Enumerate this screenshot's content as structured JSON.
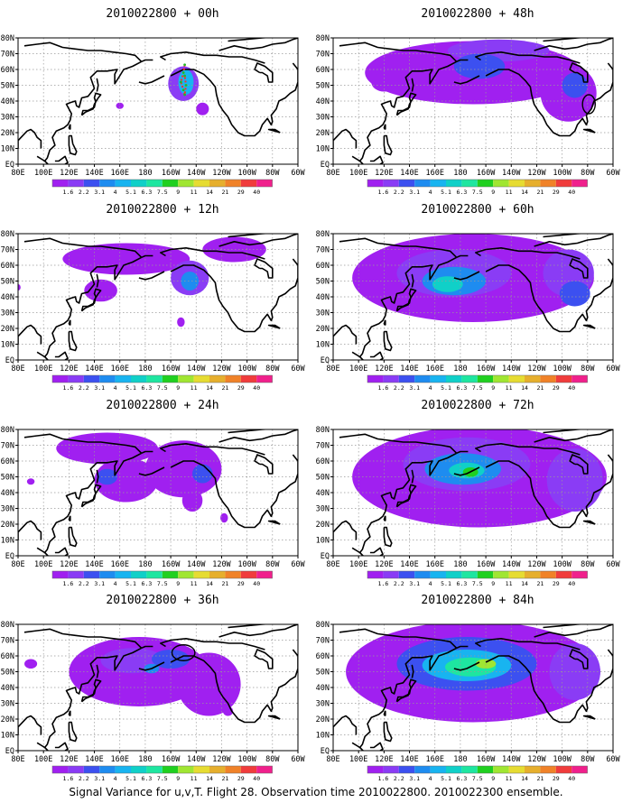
{
  "figure": {
    "caption": "Signal Variance for u,v,T. Flight 28. Observation time 2010022800. 2010022300 ensemble."
  },
  "colors": {
    "land_outline": "#000000",
    "grid": "#999999",
    "track": "#ff2b2b",
    "track_points": "#23b823"
  },
  "chart_data": [
    {
      "type": "heatmap",
      "title": "2010022800 + 00h",
      "lead_hours": 0,
      "x_ticks": [
        "80E",
        "100E",
        "120E",
        "140E",
        "160E",
        "180",
        "160W",
        "140W",
        "120W",
        "100W",
        "80W",
        "60W"
      ],
      "y_ticks": [
        "EQ",
        "10N",
        "20N",
        "30N",
        "40N",
        "50N",
        "60N",
        "70N",
        "80N"
      ],
      "colorbar": {
        "levels": [
          "1.6",
          "2.2",
          "3.1",
          "4",
          "5.1",
          "6.3",
          "7.5",
          "9",
          "11",
          "14",
          "21",
          "29",
          "40"
        ],
        "colors": [
          "#a020f0",
          "#8a3cf5",
          "#3c50f0",
          "#1e8cf0",
          "#18b4f0",
          "#10d0c8",
          "#1ee6a0",
          "#20d020",
          "#a0e632",
          "#e6dc32",
          "#e6af2d",
          "#f08228",
          "#f03c3c",
          "#f0208c"
        ]
      },
      "blobs": [
        {
          "lon": -150,
          "lat": 51,
          "rx": 12,
          "ry": 11,
          "level": 1
        },
        {
          "lon": -148,
          "lat": 52,
          "rx": 6,
          "ry": 8,
          "level": 4
        },
        {
          "lon": -135,
          "lat": 35,
          "rx": 5,
          "ry": 4,
          "level": 0
        },
        {
          "lon": 160,
          "lat": 37,
          "rx": 3,
          "ry": 2,
          "level": 0
        }
      ],
      "annotation": {
        "type": "flight-track",
        "lon": [
          -149,
          -150,
          -152,
          -150,
          -149,
          -148,
          -149
        ],
        "lat": [
          63,
          58,
          52,
          47,
          44,
          50,
          56
        ]
      }
    },
    {
      "type": "heatmap",
      "title": "2010022800 + 12h",
      "lead_hours": 12,
      "x_ticks": [
        "80E",
        "100E",
        "120E",
        "140E",
        "160E",
        "180",
        "160W",
        "140W",
        "120W",
        "100W",
        "80W",
        "60W"
      ],
      "y_ticks": [
        "EQ",
        "10N",
        "20N",
        "30N",
        "40N",
        "50N",
        "60N",
        "70N",
        "80N"
      ],
      "colorbar": {
        "levels": [
          "1.6",
          "2.2",
          "3.1",
          "4",
          "5.1",
          "6.3",
          "7.5",
          "9",
          "11",
          "14",
          "21",
          "29",
          "40"
        ],
        "colors": [
          "#a020f0",
          "#8a3cf5",
          "#3c50f0",
          "#1e8cf0",
          "#18b4f0",
          "#10d0c8",
          "#1ee6a0",
          "#20d020",
          "#a0e632",
          "#e6dc32",
          "#e6af2d",
          "#f08228",
          "#f03c3c",
          "#f0208c"
        ]
      },
      "blobs": [
        {
          "lon": 165,
          "lat": 64,
          "rx": 50,
          "ry": 10,
          "level": 0
        },
        {
          "lon": -110,
          "lat": 70,
          "rx": 25,
          "ry": 8,
          "level": 0
        },
        {
          "lon": -145,
          "lat": 52,
          "rx": 15,
          "ry": 11,
          "level": 1
        },
        {
          "lon": -145,
          "lat": 50,
          "rx": 7,
          "ry": 6,
          "level": 3
        },
        {
          "lon": 145,
          "lat": 44,
          "rx": 13,
          "ry": 7,
          "level": 0
        },
        {
          "lon": -152,
          "lat": 24,
          "rx": 3,
          "ry": 3,
          "level": 0
        },
        {
          "lon": 80,
          "lat": 46,
          "rx": 2,
          "ry": 2,
          "level": 0
        }
      ],
      "annotation": null
    },
    {
      "type": "heatmap",
      "title": "2010022800 + 24h",
      "lead_hours": 24,
      "x_ticks": [
        "80E",
        "100E",
        "120E",
        "140E",
        "160E",
        "180",
        "160W",
        "140W",
        "120W",
        "100W",
        "80W",
        "60W"
      ],
      "y_ticks": [
        "EQ",
        "10N",
        "20N",
        "30N",
        "40N",
        "50N",
        "60N",
        "70N",
        "80N"
      ],
      "colorbar": {
        "levels": [
          "1.6",
          "2.2",
          "3.1",
          "4",
          "5.1",
          "6.3",
          "7.5",
          "9",
          "11",
          "14",
          "21",
          "29",
          "40"
        ],
        "colors": [
          "#a020f0",
          "#8a3cf5",
          "#3c50f0",
          "#1e8cf0",
          "#18b4f0",
          "#10d0c8",
          "#1ee6a0",
          "#20d020",
          "#a0e632",
          "#e6dc32",
          "#e6af2d",
          "#f08228",
          "#f03c3c",
          "#f0208c"
        ]
      },
      "blobs": [
        {
          "lon": 150,
          "lat": 68,
          "rx": 40,
          "ry": 10,
          "level": 0
        },
        {
          "lon": -150,
          "lat": 55,
          "rx": 30,
          "ry": 18,
          "level": 0
        },
        {
          "lon": 165,
          "lat": 48,
          "rx": 25,
          "ry": 14,
          "level": 0
        },
        {
          "lon": 150,
          "lat": 50,
          "rx": 8,
          "ry": 5,
          "level": 2
        },
        {
          "lon": -135,
          "lat": 52,
          "rx": 8,
          "ry": 6,
          "level": 2
        },
        {
          "lon": -143,
          "lat": 35,
          "rx": 8,
          "ry": 7,
          "level": 0
        },
        {
          "lon": 90,
          "lat": 47,
          "rx": 3,
          "ry": 2,
          "level": 0
        },
        {
          "lon": -118,
          "lat": 24,
          "rx": 3,
          "ry": 3,
          "level": 0
        }
      ],
      "annotation": null
    },
    {
      "type": "heatmap",
      "title": "2010022800 + 36h",
      "lead_hours": 36,
      "x_ticks": [
        "80E",
        "100E",
        "120E",
        "140E",
        "160E",
        "180",
        "160W",
        "140W",
        "120W",
        "100W",
        "80W",
        "60W"
      ],
      "y_ticks": [
        "EQ",
        "10N",
        "20N",
        "30N",
        "40N",
        "50N",
        "60N",
        "70N",
        "80N"
      ],
      "colorbar": {
        "levels": [
          "1.6",
          "2.2",
          "3.1",
          "4",
          "5.1",
          "6.3",
          "7.5",
          "9",
          "11",
          "14",
          "21",
          "29",
          "40"
        ],
        "colors": [
          "#a020f0",
          "#8a3cf5",
          "#3c50f0",
          "#1e8cf0",
          "#18b4f0",
          "#10d0c8",
          "#1ee6a0",
          "#20d020",
          "#a0e632",
          "#e6dc32",
          "#e6af2d",
          "#f08228",
          "#f03c3c",
          "#f0208c"
        ]
      },
      "blobs": [
        {
          "lon": 175,
          "lat": 50,
          "rx": 55,
          "ry": 22,
          "level": 0
        },
        {
          "lon": -130,
          "lat": 42,
          "rx": 25,
          "ry": 20,
          "level": 0
        },
        {
          "lon": 170,
          "lat": 57,
          "rx": 25,
          "ry": 8,
          "level": 1
        },
        {
          "lon": -160,
          "lat": 58,
          "rx": 15,
          "ry": 6,
          "level": 2
        },
        {
          "lon": -175,
          "lat": 52,
          "rx": 6,
          "ry": 3,
          "level": 3
        },
        {
          "lon": 90,
          "lat": 55,
          "rx": 5,
          "ry": 3,
          "level": 0
        },
        {
          "lon": -115,
          "lat": 25,
          "rx": 4,
          "ry": 3,
          "level": 0
        }
      ],
      "annotation": {
        "type": "ellipse",
        "lon": -150,
        "lat": 62,
        "rx": 9,
        "ry": 5
      }
    },
    {
      "type": "heatmap",
      "title": "2010022800 + 48h",
      "lead_hours": 48,
      "x_ticks": [
        "80E",
        "100E",
        "120E",
        "140E",
        "160E",
        "180",
        "160W",
        "140W",
        "120W",
        "100W",
        "80W",
        "60W"
      ],
      "y_ticks": [
        "EQ",
        "10N",
        "20N",
        "30N",
        "40N",
        "50N",
        "60N",
        "70N",
        "80N"
      ],
      "colorbar": {
        "levels": [
          "1.6",
          "2.2",
          "3.1",
          "4",
          "5.1",
          "6.3",
          "7.5",
          "9",
          "11",
          "14",
          "21",
          "29",
          "40"
        ],
        "colors": [
          "#a020f0",
          "#8a3cf5",
          "#3c50f0",
          "#1e8cf0",
          "#18b4f0",
          "#10d0c8",
          "#1ee6a0",
          "#20d020",
          "#a0e632",
          "#e6dc32",
          "#e6af2d",
          "#f08228",
          "#f03c3c",
          "#f0208c"
        ]
      },
      "blobs": [
        {
          "lon": -170,
          "lat": 58,
          "rx": 85,
          "ry": 20,
          "level": 0
        },
        {
          "lon": -150,
          "lat": 72,
          "rx": 40,
          "ry": 7,
          "level": 1
        },
        {
          "lon": -165,
          "lat": 62,
          "rx": 20,
          "ry": 8,
          "level": 2
        },
        {
          "lon": -95,
          "lat": 45,
          "rx": 22,
          "ry": 18,
          "level": 0
        },
        {
          "lon": -90,
          "lat": 50,
          "rx": 10,
          "ry": 8,
          "level": 2
        },
        {
          "lon": 120,
          "lat": 52,
          "rx": 10,
          "ry": 6,
          "level": 0
        }
      ],
      "annotation": {
        "type": "ellipse",
        "lon": -79,
        "lat": 38,
        "rx": 5,
        "ry": 6
      }
    },
    {
      "type": "heatmap",
      "title": "2010022800 + 60h",
      "lead_hours": 60,
      "x_ticks": [
        "80E",
        "100E",
        "120E",
        "140E",
        "160E",
        "180",
        "160W",
        "140W",
        "120W",
        "100W",
        "80W",
        "60W"
      ],
      "y_ticks": [
        "EQ",
        "10N",
        "20N",
        "30N",
        "40N",
        "50N",
        "60N",
        "70N",
        "80N"
      ],
      "colorbar": {
        "levels": [
          "1.6",
          "2.2",
          "3.1",
          "4",
          "5.1",
          "6.3",
          "7.5",
          "9",
          "11",
          "14",
          "21",
          "29",
          "40"
        ],
        "colors": [
          "#a020f0",
          "#8a3cf5",
          "#3c50f0",
          "#1e8cf0",
          "#18b4f0",
          "#10d0c8",
          "#1ee6a0",
          "#20d020",
          "#a0e632",
          "#e6dc32",
          "#e6af2d",
          "#f08228",
          "#f03c3c",
          "#f0208c"
        ]
      },
      "blobs": [
        {
          "lon": -170,
          "lat": 52,
          "rx": 95,
          "ry": 28,
          "level": 0
        },
        {
          "lon": 175,
          "lat": 55,
          "rx": 45,
          "ry": 15,
          "level": 1
        },
        {
          "lon": 175,
          "lat": 50,
          "rx": 25,
          "ry": 9,
          "level": 3
        },
        {
          "lon": 170,
          "lat": 48,
          "rx": 12,
          "ry": 5,
          "level": 5
        },
        {
          "lon": -95,
          "lat": 55,
          "rx": 20,
          "ry": 15,
          "level": 1
        },
        {
          "lon": -90,
          "lat": 42,
          "rx": 12,
          "ry": 8,
          "level": 2
        }
      ],
      "annotation": null
    },
    {
      "type": "heatmap",
      "title": "2010022800 + 72h",
      "lead_hours": 72,
      "x_ticks": [
        "80E",
        "100E",
        "120E",
        "140E",
        "160E",
        "180",
        "160W",
        "140W",
        "120W",
        "100W",
        "80W",
        "60W"
      ],
      "y_ticks": [
        "EQ",
        "10N",
        "20N",
        "30N",
        "40N",
        "50N",
        "60N",
        "70N",
        "80N"
      ],
      "colorbar": {
        "levels": [
          "1.6",
          "2.2",
          "3.1",
          "4",
          "5.1",
          "6.3",
          "7.5",
          "9",
          "11",
          "14",
          "21",
          "29",
          "40"
        ],
        "colors": [
          "#a020f0",
          "#8a3cf5",
          "#3c50f0",
          "#1e8cf0",
          "#18b4f0",
          "#10d0c8",
          "#1ee6a0",
          "#20d020",
          "#a0e632",
          "#e6dc32",
          "#e6af2d",
          "#f08228",
          "#f03c3c",
          "#f0208c"
        ]
      },
      "blobs": [
        {
          "lon": -165,
          "lat": 50,
          "rx": 100,
          "ry": 32,
          "level": 0
        },
        {
          "lon": -175,
          "lat": 58,
          "rx": 50,
          "ry": 17,
          "level": 1
        },
        {
          "lon": -178,
          "lat": 55,
          "rx": 30,
          "ry": 10,
          "level": 3
        },
        {
          "lon": -175,
          "lat": 54,
          "rx": 14,
          "ry": 5,
          "level": 5
        },
        {
          "lon": -172,
          "lat": 53,
          "rx": 6,
          "ry": 3,
          "level": 7
        },
        {
          "lon": -90,
          "lat": 48,
          "rx": 22,
          "ry": 20,
          "level": 1
        }
      ],
      "annotation": null
    },
    {
      "type": "heatmap",
      "title": "2010022800 + 84h",
      "lead_hours": 84,
      "x_ticks": [
        "80E",
        "100E",
        "120E",
        "140E",
        "160E",
        "180",
        "160W",
        "140W",
        "120W",
        "100W",
        "80W",
        "60W"
      ],
      "y_ticks": [
        "EQ",
        "10N",
        "20N",
        "30N",
        "40N",
        "50N",
        "60N",
        "70N",
        "80N"
      ],
      "colorbar": {
        "levels": [
          "1.6",
          "2.2",
          "3.1",
          "4",
          "5.1",
          "6.3",
          "7.5",
          "9",
          "11",
          "14",
          "21",
          "29",
          "40"
        ],
        "colors": [
          "#a020f0",
          "#8a3cf5",
          "#3c50f0",
          "#1e8cf0",
          "#18b4f0",
          "#10d0c8",
          "#1ee6a0",
          "#20d020",
          "#a0e632",
          "#e6dc32",
          "#e6af2d",
          "#f08228",
          "#f03c3c",
          "#f0208c"
        ]
      },
      "blobs": [
        {
          "lon": -170,
          "lat": 50,
          "rx": 100,
          "ry": 32,
          "level": 0
        },
        {
          "lon": -175,
          "lat": 55,
          "rx": 55,
          "ry": 17,
          "level": 2
        },
        {
          "lon": -175,
          "lat": 54,
          "rx": 35,
          "ry": 10,
          "level": 4
        },
        {
          "lon": -172,
          "lat": 53,
          "rx": 20,
          "ry": 6,
          "level": 6
        },
        {
          "lon": -160,
          "lat": 55,
          "rx": 8,
          "ry": 3,
          "level": 8
        },
        {
          "lon": -90,
          "lat": 50,
          "rx": 20,
          "ry": 18,
          "level": 1
        }
      ],
      "annotation": null
    }
  ]
}
